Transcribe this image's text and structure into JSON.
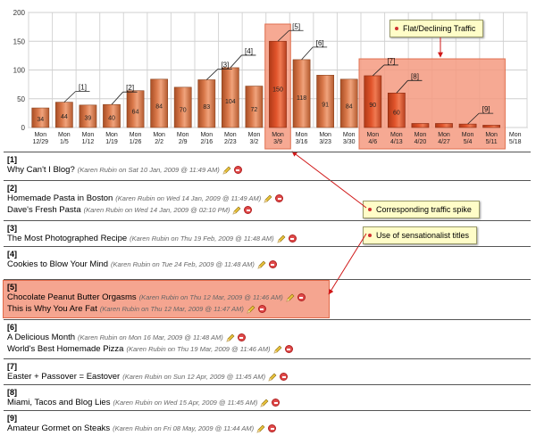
{
  "chart_data": {
    "type": "bar",
    "title": "",
    "xlabel": "",
    "ylabel": "",
    "ylim": [
      0,
      200
    ],
    "yticks": [
      0,
      50,
      100,
      150,
      200
    ],
    "grid": true,
    "categories": [
      [
        "Mon",
        "12/29"
      ],
      [
        "Mon",
        "1/5"
      ],
      [
        "Mon",
        "1/12"
      ],
      [
        "Mon",
        "1/19"
      ],
      [
        "Mon",
        "1/26"
      ],
      [
        "Mon",
        "2/2"
      ],
      [
        "Mon",
        "2/9"
      ],
      [
        "Mon",
        "2/16"
      ],
      [
        "Mon",
        "2/23"
      ],
      [
        "Mon",
        "3/2"
      ],
      [
        "Mon",
        "3/9"
      ],
      [
        "Mon",
        "3/16"
      ],
      [
        "Mon",
        "3/23"
      ],
      [
        "Mon",
        "3/30"
      ],
      [
        "Mon",
        "4/6"
      ],
      [
        "Mon",
        "4/13"
      ],
      [
        "Mon",
        "4/20"
      ],
      [
        "Mon",
        "4/27"
      ],
      [
        "Mon",
        "5/4"
      ],
      [
        "Mon",
        "5/11"
      ],
      [
        "Mon",
        "5/18"
      ]
    ],
    "values": [
      34,
      44,
      39,
      40,
      64,
      84,
      70,
      83,
      104,
      72,
      150,
      118,
      91,
      84,
      90,
      60,
      7,
      7,
      6,
      4,
      null
    ],
    "value_labels": [
      "34",
      "44",
      "39",
      "40",
      "64",
      "84",
      "70",
      "83",
      "104",
      "72",
      "150",
      "118",
      "91",
      "84",
      "90",
      "60",
      "",
      "",
      "",
      "",
      ""
    ],
    "annotations": [
      {
        "label": "[1]",
        "index": 1
      },
      {
        "label": "[2]",
        "index": 3
      },
      {
        "label": "[3]",
        "index": 7
      },
      {
        "label": "[4]",
        "index": 8
      },
      {
        "label": "[5]",
        "index": 10
      },
      {
        "label": "[6]",
        "index": 11
      },
      {
        "label": "[7]",
        "index": 14
      },
      {
        "label": "[8]",
        "index": 15
      },
      {
        "label": "[9]",
        "index": 18
      }
    ],
    "spike_region": [
      10,
      10
    ],
    "decline_region": [
      14,
      19
    ]
  },
  "callouts": {
    "flat": "Flat/Declining Traffic",
    "spike": "Corresponding traffic spike",
    "sensational": "Use of sensationalist titles"
  },
  "colors": {
    "bar": "#d9784a",
    "bar_highlight": "#e0532a",
    "region_fill": "#f59a80",
    "arrow": "#d01818"
  },
  "entries": [
    {
      "num": "[1]",
      "items": [
        {
          "title": "Why Can't I Blog?",
          "meta": "(Karen Rubin on Sat 10 Jan, 2009 @ 11:49 AM)"
        }
      ]
    },
    {
      "num": "[2]",
      "items": [
        {
          "title": "Homemade Pasta in Boston",
          "meta": "(Karen Rubin on Wed 14 Jan, 2009 @ 11:49 AM)"
        },
        {
          "title": "Dave's Fresh Pasta",
          "meta": "(Karen Rubin on Wed 14 Jan, 2009 @ 02:10 PM)"
        }
      ]
    },
    {
      "num": "[3]",
      "items": [
        {
          "title": "The Most Photographed Recipe",
          "meta": "(Karen Rubin on Thu 19 Feb, 2009 @ 11:48 AM)"
        }
      ]
    },
    {
      "num": "[4]",
      "items": [
        {
          "title": "Cookies to Blow Your Mind",
          "meta": "(Karen Rubin on Tue 24 Feb, 2009 @ 11:48 AM)"
        }
      ]
    },
    {
      "num": "[5]",
      "items": [
        {
          "title": "Chocolate Peanut Butter Orgasms",
          "meta": "(Karen Rubin on Thu 12 Mar, 2009 @ 11:46 AM)"
        },
        {
          "title": "This is Why You Are Fat",
          "meta": "(Karen Rubin on Thu 12 Mar, 2009 @ 11:47 AM)"
        }
      ]
    },
    {
      "num": "[6]",
      "items": [
        {
          "title": "A Delicious Month",
          "meta": "(Karen Rubin on Mon 16 Mar, 2009 @ 11:48 AM)"
        },
        {
          "title": "World's Best Homemade Pizza",
          "meta": "(Karen Rubin on Thu 19 Mar, 2009 @ 11:46 AM)"
        }
      ]
    },
    {
      "num": "[7]",
      "items": [
        {
          "title": "Easter + Passover = Eastover",
          "meta": "(Karen Rubin on Sun 12 Apr, 2009 @ 11:45 AM)"
        }
      ]
    },
    {
      "num": "[8]",
      "items": [
        {
          "title": "Miami, Tacos and Blog Lies",
          "meta": "(Karen Rubin on Wed 15 Apr, 2009 @ 11:45 AM)"
        }
      ]
    },
    {
      "num": "[9]",
      "items": [
        {
          "title": "Amateur Gormet on Steaks",
          "meta": "(Karen Rubin on Fri 08 May, 2009 @ 11:44 AM)"
        }
      ]
    }
  ]
}
